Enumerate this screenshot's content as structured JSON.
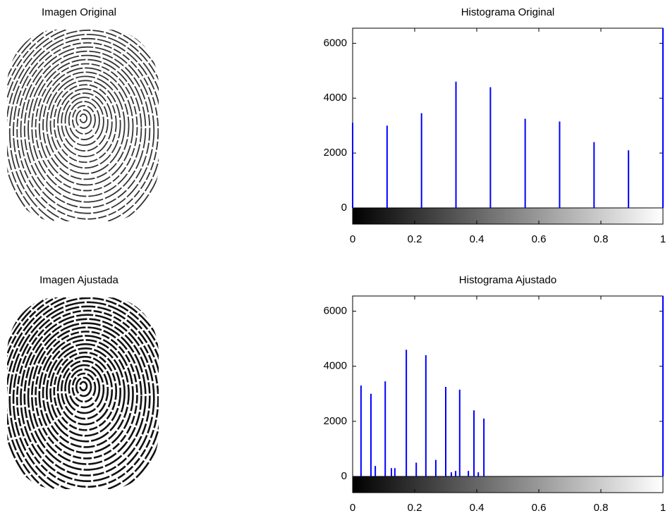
{
  "images": [
    {
      "title": "Imagen Original"
    },
    {
      "title": "Imagen Ajustada"
    }
  ],
  "chart_data": [
    {
      "type": "stem",
      "title": "Histograma Original",
      "color": "#0000ff",
      "x": [
        0,
        0.111,
        0.222,
        0.333,
        0.444,
        0.556,
        0.667,
        0.778,
        0.889,
        1
      ],
      "values": [
        3100,
        3000,
        3450,
        4600,
        4400,
        3250,
        3150,
        2400,
        2100,
        6550
      ],
      "xlim": [
        0,
        1
      ],
      "xticks": [
        0,
        0.2,
        0.4,
        0.6,
        0.8,
        1
      ],
      "ylim": [
        0,
        6550
      ],
      "yticks": [
        0,
        2000,
        4000,
        6000
      ],
      "colorbar": true
    },
    {
      "type": "stem",
      "title": "Histograma Ajustado",
      "color": "#0000ff",
      "x": [
        0.027,
        0.059,
        0.073,
        0.105,
        0.125,
        0.136,
        0.173,
        0.205,
        0.236,
        0.268,
        0.3,
        0.318,
        0.332,
        0.345,
        0.373,
        0.391,
        0.405,
        0.423,
        1
      ],
      "values": [
        3300,
        3000,
        380,
        3450,
        300,
        300,
        4600,
        500,
        4400,
        600,
        3250,
        150,
        200,
        3150,
        200,
        2400,
        150,
        2100,
        6550
      ],
      "xlim": [
        0,
        1
      ],
      "xticks": [
        0,
        0.2,
        0.4,
        0.6,
        0.8,
        1
      ],
      "ylim": [
        0,
        6550
      ],
      "yticks": [
        0,
        2000,
        4000,
        6000
      ],
      "colorbar": true
    }
  ]
}
